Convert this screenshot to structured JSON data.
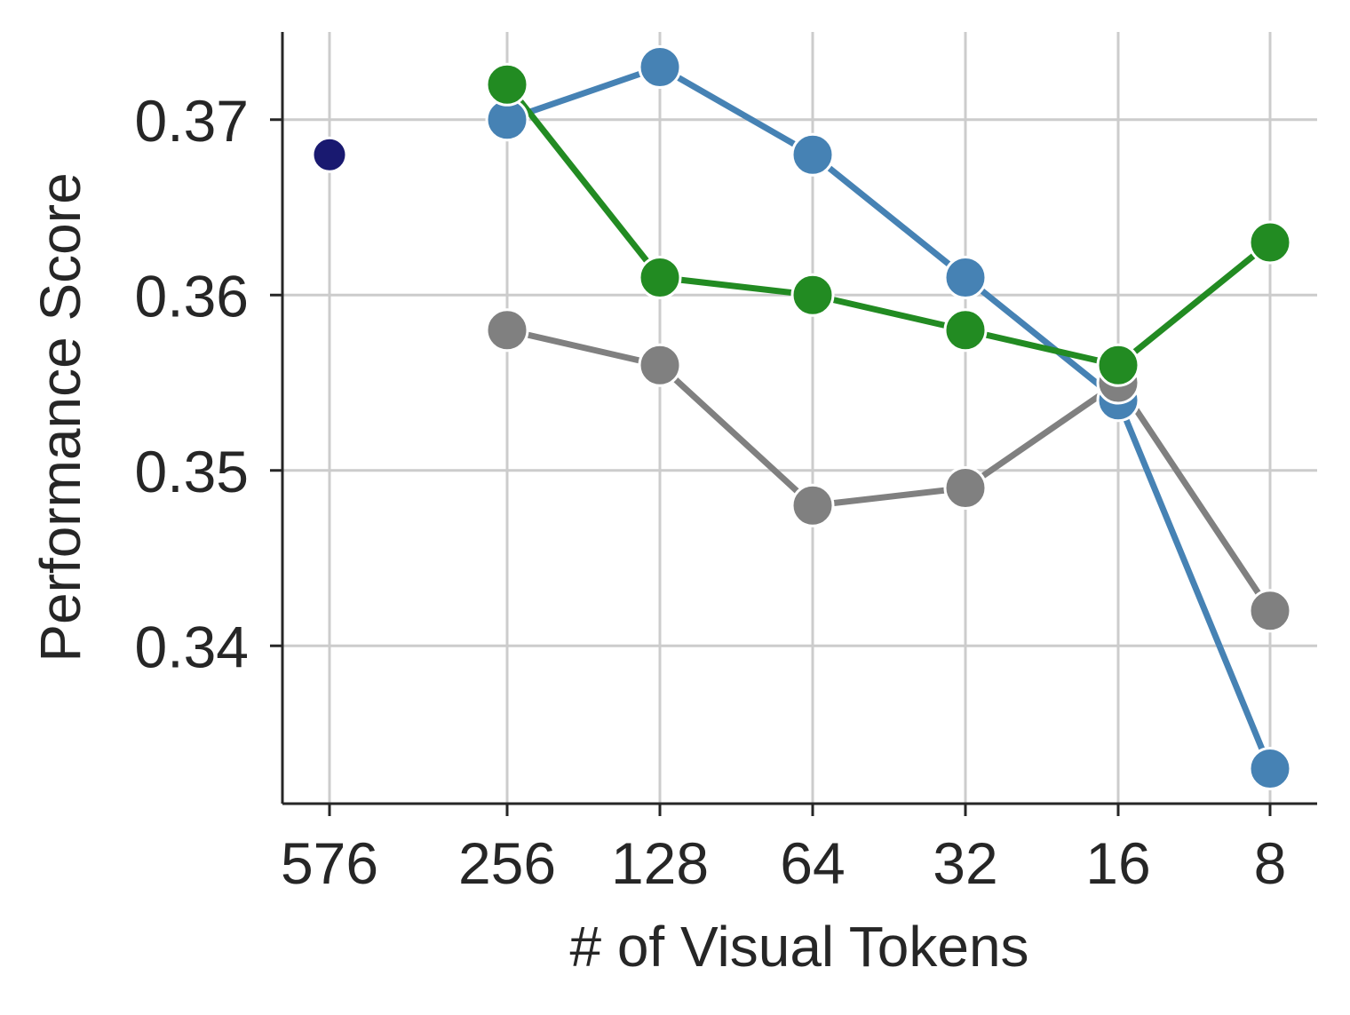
{
  "chart_data": {
    "type": "line",
    "title": "",
    "xlabel": "# of Visual Tokens",
    "ylabel": "Performance Score",
    "x_categories": [
      "576",
      "256",
      "128",
      "64",
      "32",
      "16",
      "8"
    ],
    "y_ticks": [
      "0.34",
      "0.35",
      "0.36",
      "0.37"
    ],
    "ylim": [
      0.331,
      0.375
    ],
    "grid": true,
    "legend": "none",
    "series": [
      {
        "color": "#4682b4",
        "x": [
          "256",
          "128",
          "64",
          "32",
          "16",
          "8"
        ],
        "values": [
          0.37,
          0.373,
          0.368,
          0.361,
          0.354,
          0.333
        ]
      },
      {
        "color": "#808080",
        "x": [
          "256",
          "128",
          "64",
          "32",
          "16",
          "8"
        ],
        "values": [
          0.358,
          0.356,
          0.348,
          0.349,
          0.355,
          0.342
        ]
      },
      {
        "color": "#228b22",
        "x": [
          "256",
          "128",
          "64",
          "32",
          "16",
          "8"
        ],
        "values": [
          0.372,
          0.361,
          0.36,
          0.358,
          0.356,
          0.363
        ]
      },
      {
        "color": "#191970",
        "x": [
          "576"
        ],
        "values": [
          0.368
        ]
      }
    ]
  }
}
